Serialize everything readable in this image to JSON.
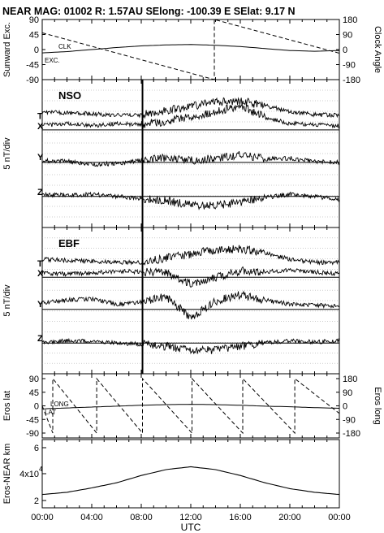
{
  "header": {
    "title": "NEAR MAG: 01002  R: 1.57AU  SElong: -100.39 E  SElat:    9.17 N"
  },
  "chart_data": [
    {
      "type": "line",
      "panel": "direction",
      "ylabel_left": "Sunward Exc.",
      "ylabel_right": "Clock Angle",
      "yticks_left": [
        "90",
        "45",
        "0",
        "-45",
        "-90"
      ],
      "yticks_right": [
        "180",
        "90",
        "0",
        "-90",
        "-180"
      ],
      "ylim_left": [
        -90,
        90
      ],
      "ylim_right": [
        -180,
        180
      ],
      "series": [
        {
          "name": "CLK",
          "axis": "right",
          "x": [
            0,
            13.9,
            13.9,
            24
          ],
          "values": [
            100,
            -180,
            180,
            -22
          ]
        },
        {
          "name": "EXC.",
          "axis": "left",
          "x": [
            0,
            2,
            4,
            6,
            8,
            10,
            12,
            14,
            16,
            18,
            20,
            22,
            24
          ],
          "values": [
            -10,
            -6,
            0,
            6,
            11,
            14,
            15,
            13,
            9,
            3,
            -3,
            -5,
            -3
          ]
        }
      ]
    },
    {
      "type": "line",
      "panel": "NSO",
      "label": "NSO",
      "ylabel": "5 nT/div",
      "traces": [
        "T",
        "X",
        "Y",
        "Z"
      ],
      "trace_labels": [
        {
          "name": "T",
          "label": "T"
        },
        {
          "name": "X",
          "label": "X"
        },
        {
          "name": "Y",
          "label": "Y"
        },
        {
          "name": "Z",
          "label": "Z"
        }
      ],
      "series": [
        {
          "name": "T",
          "x": [
            0,
            2,
            4,
            6,
            8,
            10,
            12,
            14,
            16,
            18,
            20,
            22,
            24
          ],
          "values": [
            1.3,
            1.2,
            1.1,
            1.0,
            1.0,
            1.4,
            1.8,
            2.2,
            2.3,
            1.9,
            1.3,
            1.0,
            1.0
          ]
        },
        {
          "name": "X",
          "x": [
            0,
            2,
            4,
            6,
            8,
            10,
            12,
            14,
            16,
            18,
            20,
            22,
            24
          ],
          "values": [
            0.4,
            0.6,
            0.4,
            0.6,
            0.5,
            0.8,
            1.3,
            1.7,
            2.3,
            1.2,
            0.6,
            0.5,
            0.4
          ]
        },
        {
          "name": "Y",
          "x": [
            0,
            2,
            4,
            6,
            8,
            10,
            12,
            14,
            16,
            18,
            20,
            22,
            24
          ],
          "values": [
            0.2,
            0.1,
            -0.2,
            -0.1,
            0.2,
            0.4,
            0.2,
            0.4,
            0.7,
            0.3,
            0.4,
            0.1,
            0.0
          ]
        },
        {
          "name": "Z",
          "x": [
            0,
            2,
            4,
            6,
            8,
            10,
            12,
            14,
            16,
            18,
            20,
            22,
            24
          ],
          "values": [
            0.2,
            0.1,
            0.2,
            0.0,
            -0.2,
            -0.4,
            -0.8,
            -0.9,
            -0.5,
            -0.1,
            0.2,
            0.0,
            -0.3
          ]
        }
      ],
      "marker_x": 8.1
    },
    {
      "type": "line",
      "panel": "EBF",
      "label": "EBF",
      "ylabel": "5 nT/div",
      "traces": [
        "T",
        "X",
        "Y",
        "Z"
      ],
      "trace_labels": [
        {
          "name": "T",
          "label": "T"
        },
        {
          "name": "X",
          "label": "X"
        },
        {
          "name": "Y",
          "label": "Y"
        },
        {
          "name": "Z",
          "label": "Z"
        }
      ],
      "series": [
        {
          "name": "T",
          "x": [
            0,
            2,
            4,
            6,
            8,
            10,
            12,
            14,
            16,
            18,
            20,
            22,
            24
          ],
          "values": [
            1.3,
            1.2,
            1.1,
            1.0,
            1.0,
            1.4,
            1.8,
            2.2,
            2.3,
            1.9,
            1.3,
            1.0,
            1.0
          ]
        },
        {
          "name": "X",
          "x": [
            0,
            2,
            4,
            6,
            8,
            10,
            12,
            14,
            16,
            18,
            20,
            22,
            24
          ],
          "values": [
            0.4,
            0.3,
            0.4,
            0.6,
            0.5,
            0.4,
            -0.6,
            0.0,
            0.6,
            0.5,
            0.7,
            0.5,
            0.3
          ]
        },
        {
          "name": "Y",
          "x": [
            0,
            2,
            4,
            6,
            8,
            10,
            12,
            14,
            16,
            18,
            20,
            22,
            24
          ],
          "values": [
            0.6,
            0.9,
            1.0,
            0.5,
            0.7,
            1.2,
            -0.8,
            0.8,
            1.4,
            0.9,
            0.5,
            0.4,
            0.3
          ]
        },
        {
          "name": "Z",
          "x": [
            0,
            2,
            4,
            6,
            8,
            10,
            12,
            14,
            16,
            18,
            20,
            22,
            24
          ],
          "values": [
            0.1,
            0.2,
            0.2,
            0.0,
            -0.1,
            -0.3,
            -0.7,
            -0.7,
            -0.3,
            0.0,
            0.2,
            0.1,
            0.2
          ]
        }
      ],
      "marker_x": 8.1
    },
    {
      "type": "line",
      "panel": "eros",
      "ylabel_left": "Eros lat",
      "ylabel_right": "Eros long",
      "yticks_left": [
        "90",
        "45",
        "0",
        "-45",
        "-90"
      ],
      "yticks_right": [
        "180",
        "90",
        "0",
        "-90",
        "-180"
      ],
      "ylim_left": [
        -90,
        90
      ],
      "ylim_right": [
        -180,
        180
      ],
      "series": [
        {
          "name": "LONG",
          "axis": "right",
          "x": [
            0,
            0.85,
            0.85,
            4.4,
            4.4,
            8.1,
            8.1,
            12.1,
            12.1,
            16.2,
            16.2,
            20.4,
            20.4,
            24
          ],
          "values": [
            0,
            -180,
            180,
            -180,
            180,
            -180,
            180,
            -180,
            180,
            -180,
            180,
            -180,
            180,
            -50
          ]
        },
        {
          "name": "LAT",
          "axis": "left",
          "x": [
            0,
            2,
            4,
            6,
            8,
            10,
            12,
            14,
            16,
            18,
            20,
            22,
            24
          ],
          "values": [
            -10,
            -7,
            -4,
            -1,
            2,
            4,
            5,
            4,
            2,
            -1,
            -3,
            -6,
            -8
          ]
        }
      ]
    },
    {
      "type": "line",
      "panel": "range",
      "ylabel": "Eros-NEAR km",
      "yticks": [
        "6",
        "4x10",
        "2"
      ],
      "series": [
        {
          "name": "Eros-NEAR km",
          "x": [
            0,
            2,
            4,
            6,
            8,
            10,
            12,
            14,
            16,
            18,
            20,
            22,
            24
          ],
          "values": [
            1.8,
            1.95,
            2.25,
            2.6,
            3.1,
            3.5,
            3.7,
            3.5,
            3.1,
            2.6,
            2.2,
            1.95,
            1.8
          ]
        }
      ]
    }
  ],
  "x_axis": {
    "ticks": [
      "00:00",
      "04:00",
      "08:00",
      "12:00",
      "16:00",
      "20:00",
      "00:00"
    ],
    "label": "UTC"
  }
}
